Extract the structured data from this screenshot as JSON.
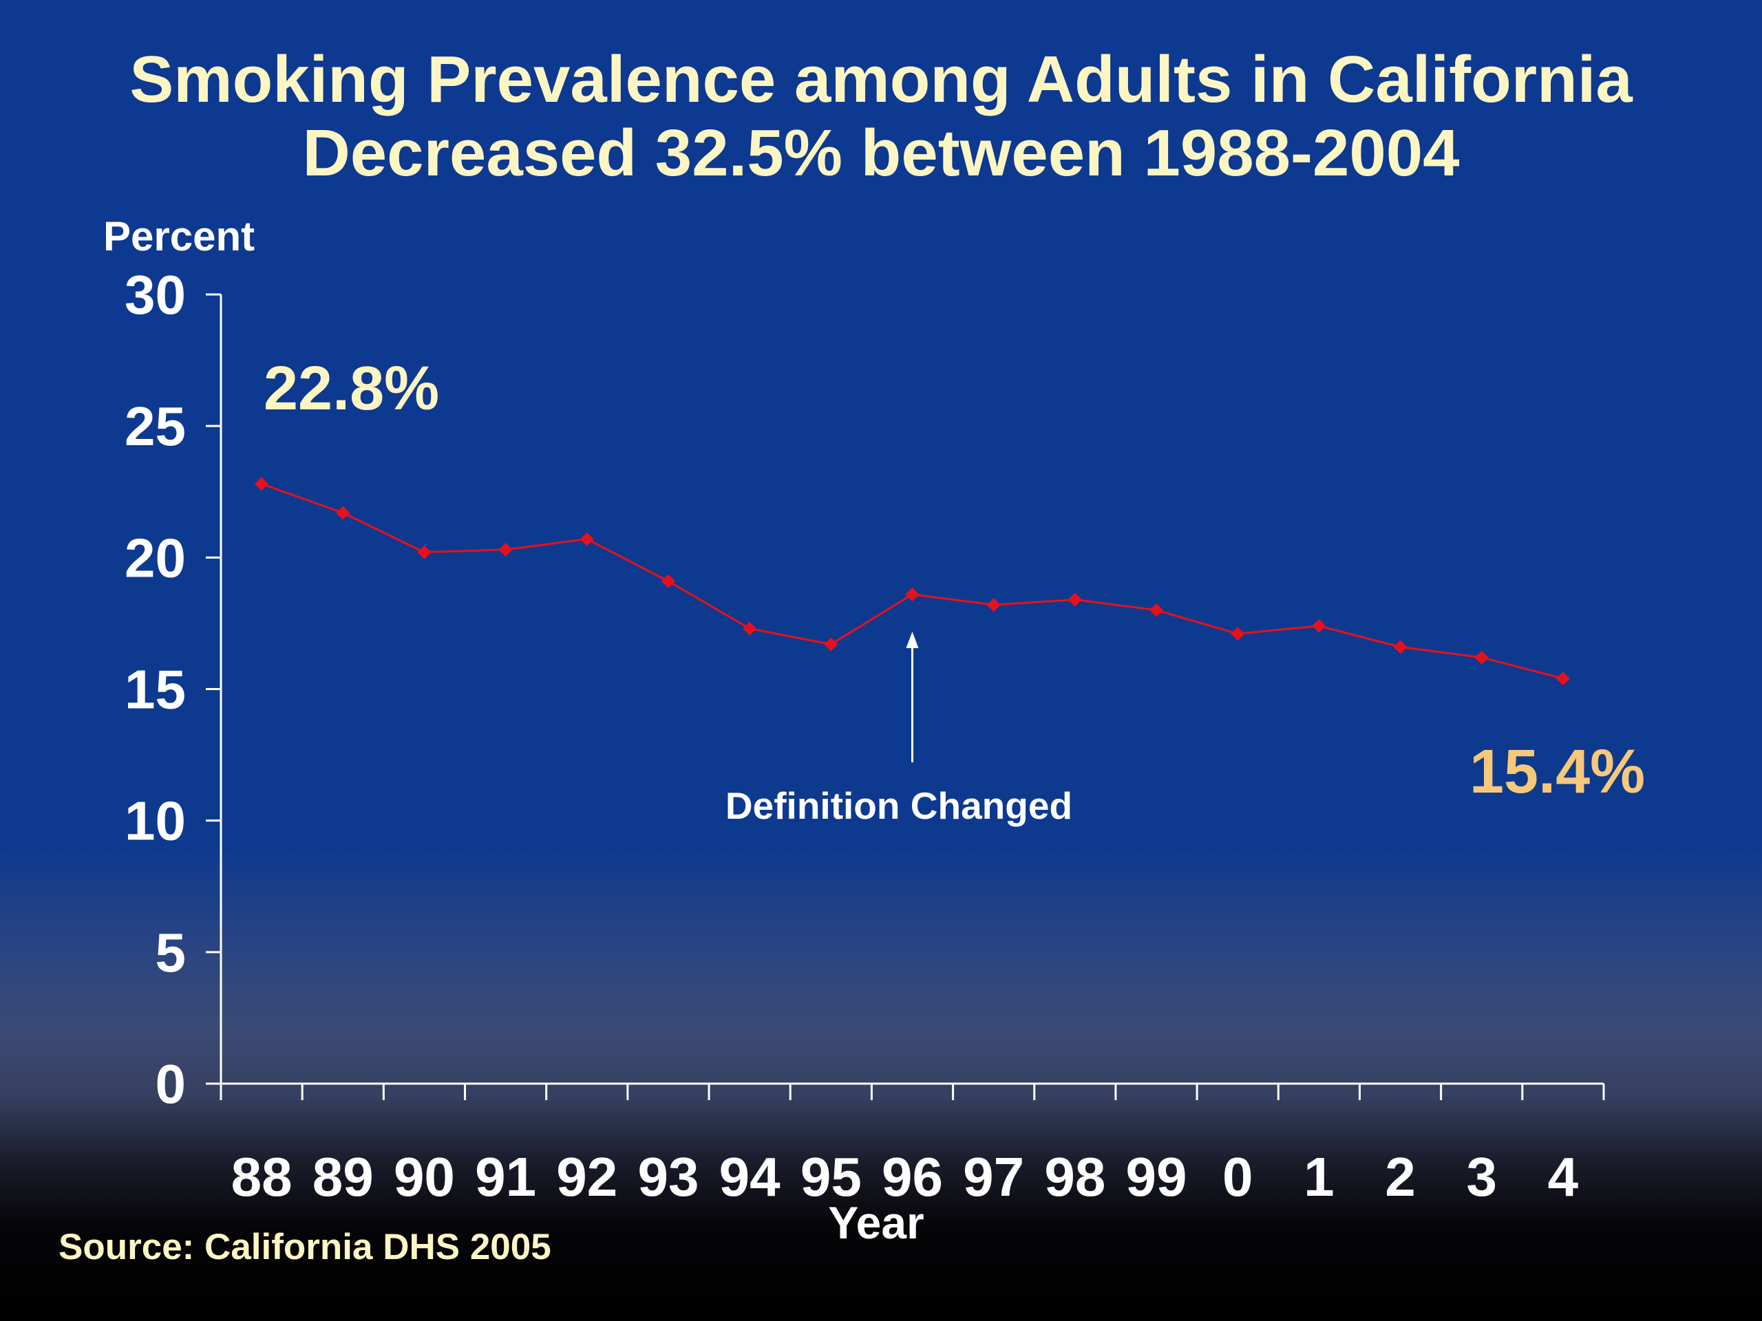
{
  "chart_data": {
    "type": "line",
    "title_lines": [
      "Smoking Prevalence among Adults in California",
      "Decreased 32.5% between 1988-2004"
    ],
    "ylabel": "Percent",
    "xlabel": "Year",
    "ylim": [
      0,
      30
    ],
    "yticks": [
      "0",
      "5",
      "10",
      "15",
      "20",
      "25",
      "30"
    ],
    "categories": [
      "88",
      "89",
      "90",
      "91",
      "92",
      "93",
      "94",
      "95",
      "96",
      "97",
      "98",
      "99",
      "0",
      "1",
      "2",
      "3",
      "4"
    ],
    "series": [
      {
        "values": [
          22.8,
          21.7,
          20.2,
          20.3,
          20.7,
          19.1,
          17.3,
          16.7,
          18.6,
          18.2,
          18.4,
          18.0,
          17.1,
          17.4,
          16.6,
          16.2,
          15.4
        ],
        "color": "#e8101c"
      }
    ],
    "annotations": {
      "start_label": "22.8%",
      "end_label": "15.4%",
      "definition_label": "Definition Changed",
      "definition_category": "96"
    },
    "source": "Source:  California DHS 2005",
    "grid": false,
    "legend": "none"
  },
  "colors": {
    "title": "#fdf6c3",
    "text": "#ffffff",
    "series": "#e8101c",
    "end_label": "#f7c87a",
    "source": "#fdf6c3"
  }
}
